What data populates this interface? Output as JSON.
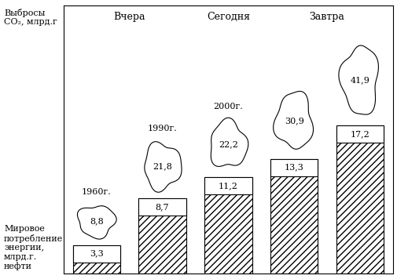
{
  "chart_data": {
    "type": "bar",
    "categories": [
      "1960г.",
      "1990г.",
      "2000г.",
      null,
      null
    ],
    "periods": [
      "Вчера",
      "Вчера",
      "Сегодня",
      "Завтра",
      "Завтра"
    ],
    "series": [
      {
        "name": "Мировое потребление энергии, млрд.г. нефти",
        "values": [
          3.3,
          8.7,
          11.2,
          13.3,
          17.2
        ],
        "value_labels": [
          "3,3",
          "8,7",
          "11,2",
          "13,3",
          "17,2"
        ]
      },
      {
        "name": "Выбросы CO₂, млрд.г",
        "values": [
          8.8,
          21.8,
          22.2,
          30.9,
          41.9
        ],
        "value_labels": [
          "8,8",
          "21,8",
          "22,2",
          "30,9",
          "41,9"
        ]
      }
    ],
    "data_labels": true,
    "tick_labels": false
  }
}
